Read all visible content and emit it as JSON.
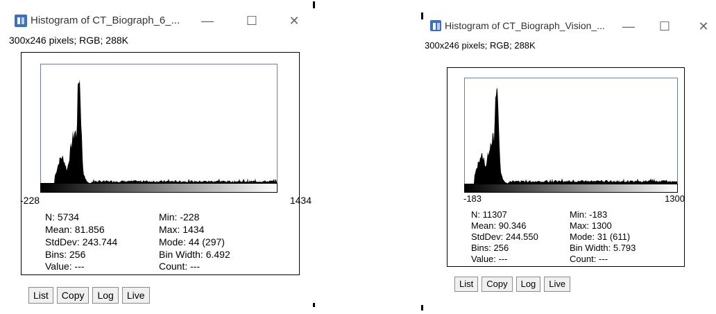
{
  "windows": [
    {
      "title": "Histogram of CT_Biograph_6_...",
      "info": "300x246 pixels; RGB; 288K",
      "axis": {
        "min_label": "-228",
        "max_label": "1434"
      },
      "stats": {
        "n": "N: 5734",
        "mean": "Mean: 81.856",
        "stddev": "StdDev: 243.744",
        "bins": "Bins: 256",
        "value": "Value: ---",
        "min": "Min: -228",
        "max": "Max: 1434",
        "mode": "Mode: 44 (297)",
        "bin_width": "Bin Width: 6.492",
        "count": "Count: ---"
      },
      "buttons": {
        "list": "List",
        "copy": "Copy",
        "log": "Log",
        "live": "Live"
      }
    },
    {
      "title": "Histogram of CT_Biograph_Vision_...",
      "info": "300x246 pixels; RGB; 288K",
      "axis": {
        "min_label": "-183",
        "max_label": "1300"
      },
      "stats": {
        "n": "N: 11307",
        "mean": "Mean: 90.346",
        "stddev": "StdDev: 244.550",
        "bins": "Bins: 256",
        "value": "Value: ---",
        "min": "Min: -183",
        "max": "Max: 1300",
        "mode": "Mode: 31 (611)",
        "bin_width": "Bin Width: 5.793",
        "count": "Count: ---"
      },
      "buttons": {
        "list": "List",
        "copy": "Copy",
        "log": "Log",
        "live": "Live"
      }
    }
  ],
  "window_controls": {
    "minimize": "—",
    "maximize": "☐",
    "close": "✕"
  },
  "colors": {
    "histogram_fill": "#000000",
    "plot_frame": "#6a7fa8",
    "icon": "#3a6ec9"
  }
}
